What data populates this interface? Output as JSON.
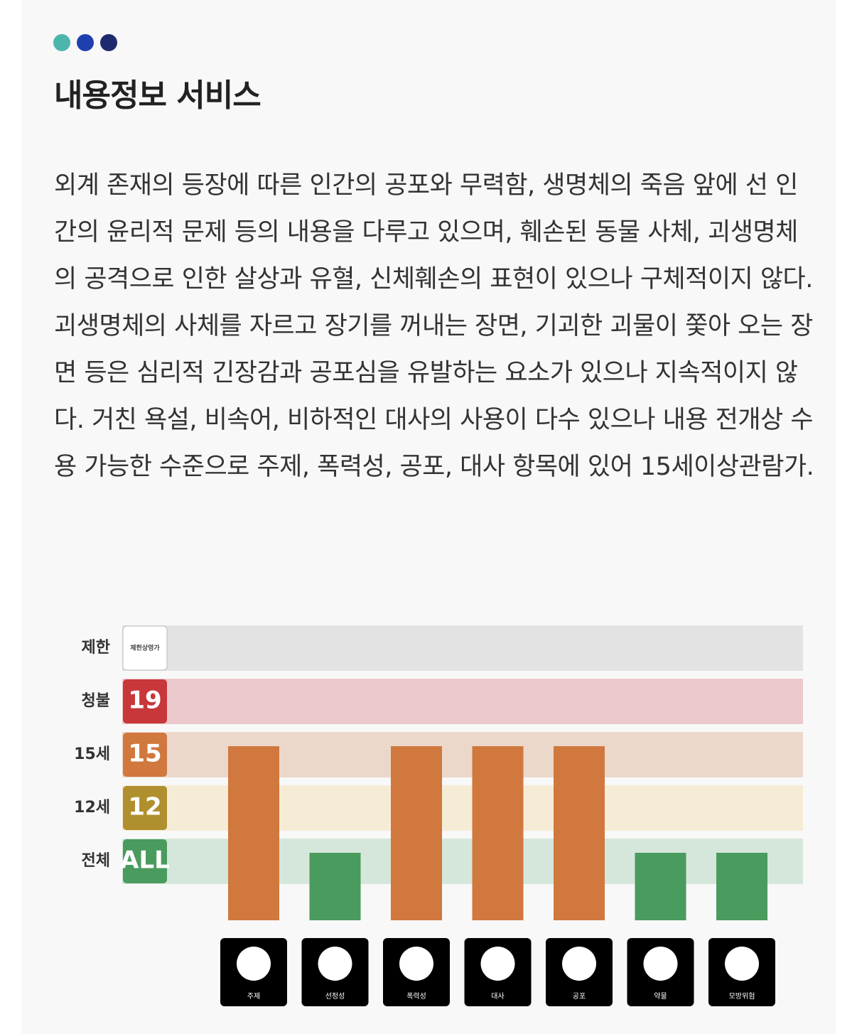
{
  "header": {
    "title": "내용정보 서비스"
  },
  "body": {
    "text": "외계 존재의 등장에 따른 인간의 공포와 무력함, 생명체의 죽음 앞에 선 인간의 윤리적 문제 등의 내용을 다루고 있으며, 훼손된 동물 사체, 괴생명체의 공격으로 인한 살상과 유혈, 신체훼손의 표현이 있으나 구체적이지 않다. 괴생명체의 사체를 자르고 장기를 꺼내는 장면, 기괴한 괴물이 쫓아 오는 장면 등은 심리적 긴장감과 공포심을 유발하는 요소가 있으나 지속적이지 않다. 거친 욕설, 비속어, 비하적인 대사의 사용이 다수 있으나 내용 전개상 수용 가능한 수준으로 주제, 폭력성, 공포, 대사 항목에 있어 15세이상관람가."
  },
  "chart_data": {
    "type": "bar",
    "categories": [
      "주제",
      "선정성",
      "폭력성",
      "대사",
      "공포",
      "약물",
      "모방위험"
    ],
    "values": [
      "15세",
      "전체",
      "15세",
      "15세",
      "15세",
      "전체",
      "전체"
    ],
    "levels": [
      "전체",
      "12세",
      "15세",
      "청불",
      "제한"
    ],
    "level_badges": [
      "ALL",
      "12",
      "15",
      "19",
      "제한상영가"
    ],
    "level_colors": [
      "#4a9b5e",
      "#b0902e",
      "#d0783e",
      "#c8373a",
      "#ffffff"
    ],
    "band_colors": [
      "#d5e7da",
      "#f6ecd6",
      "#ecd8cb",
      "#ecc9cc",
      "#e3e3e3"
    ]
  }
}
